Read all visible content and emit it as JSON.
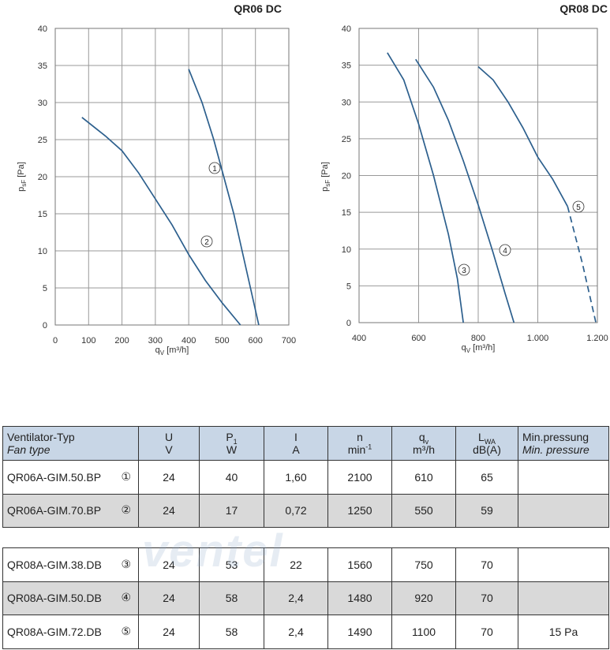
{
  "chart_data": [
    {
      "type": "line",
      "title": "QR06 DC",
      "xlabel": {
        "symbol": "q",
        "sub": "V",
        "unit": " [m³/h]"
      },
      "ylabel": {
        "symbol": "p",
        "sub": "sF",
        "unit": " [Pa]"
      },
      "xlim": [
        0,
        700
      ],
      "ylim": [
        0,
        40
      ],
      "xticks": [
        0,
        100,
        200,
        300,
        400,
        500,
        600,
        700
      ],
      "yticks": [
        0,
        5,
        10,
        15,
        20,
        25,
        30,
        35,
        40
      ],
      "grid": true,
      "series": [
        {
          "name": "1",
          "color": "#2c5f8d",
          "x": [
            400,
            440,
            475,
            505,
            535,
            560,
            585,
            610
          ],
          "values": [
            34.5,
            30,
            25,
            20,
            15,
            10,
            5,
            0
          ]
        },
        {
          "name": "2",
          "color": "#2c5f8d",
          "x": [
            80,
            150,
            200,
            250,
            300,
            350,
            400,
            450,
            500,
            555
          ],
          "values": [
            28,
            25.5,
            23.5,
            20.5,
            17,
            13.5,
            9.5,
            6,
            3,
            0
          ]
        }
      ]
    },
    {
      "type": "line",
      "title": "QR08 DC",
      "xlabel": {
        "symbol": "q",
        "sub": "V",
        "unit": " [m³/h]"
      },
      "ylabel": {
        "symbol": "p",
        "sub": "sF",
        "unit": " [Pa]"
      },
      "xlim": [
        400,
        1200
      ],
      "ylim": [
        0,
        40
      ],
      "xticks": [
        400,
        600,
        800,
        {
          "value": 1000,
          "label": "1.000"
        },
        {
          "value": 1200,
          "label": "1.200"
        }
      ],
      "yticks": [
        0,
        5,
        10,
        15,
        20,
        25,
        30,
        35,
        40
      ],
      "grid": true,
      "series": [
        {
          "name": "3",
          "color": "#2c5f8d",
          "x": [
            495,
            550,
            600,
            650,
            700,
            730,
            750
          ],
          "values": [
            36.7,
            33,
            27,
            20,
            12,
            6,
            0
          ]
        },
        {
          "name": "4",
          "color": "#2c5f8d",
          "x": [
            590,
            650,
            700,
            750,
            800,
            850,
            890,
            920
          ],
          "values": [
            35.8,
            32,
            27.5,
            22,
            16,
            9.5,
            4,
            0
          ]
        },
        {
          "name": "5",
          "color": "#2c5f8d",
          "dashed_beyond": 1100,
          "x": [
            800,
            850,
            900,
            950,
            1000,
            1050,
            1100,
            1150,
            1195
          ],
          "values": [
            34.8,
            33,
            30,
            26.5,
            22.5,
            19.5,
            15.8,
            8,
            0
          ]
        }
      ]
    }
  ],
  "table": {
    "header": [
      {
        "line1": [
          {
            "text": "Ventilator-Typ"
          }
        ],
        "line2": [
          {
            "text": "Fan type"
          }
        ]
      },
      {
        "line1": [
          {
            "text": "U"
          }
        ],
        "line2": [
          {
            "text": "V"
          }
        ]
      },
      {
        "line1": [
          {
            "text": "P"
          },
          {
            "text": "1",
            "sub": true
          }
        ],
        "line2": [
          {
            "text": "W"
          }
        ]
      },
      {
        "line1": [
          {
            "text": "I"
          }
        ],
        "line2": [
          {
            "text": "A"
          }
        ]
      },
      {
        "line1": [
          {
            "text": "n"
          }
        ],
        "line2": [
          {
            "text": "min"
          },
          {
            "text": "-1",
            "sup": true
          }
        ]
      },
      {
        "line1": [
          {
            "text": "q"
          },
          {
            "text": "v",
            "sub": true
          }
        ],
        "line2": [
          {
            "text": "m³/h"
          }
        ]
      },
      {
        "line1": [
          {
            "text": "L"
          },
          {
            "text": "WA",
            "sub": true
          }
        ],
        "line2": [
          {
            "text": "dB(A)"
          }
        ]
      },
      {
        "line1": [
          {
            "text": "Min.pressung"
          }
        ],
        "line2": [
          {
            "text": "Min. pressure"
          }
        ]
      }
    ],
    "groups": [
      {
        "rows": [
          {
            "type": "QR06A-GIM.50.BP",
            "ref": "①",
            "values": [
              "24",
              "40",
              "1,60",
              "2100",
              "610",
              "65"
            ]
          },
          {
            "type": "QR06A-GIM.70.BP",
            "ref": "②",
            "values": [
              "24",
              "17",
              "0,72",
              "1250",
              "550",
              "59"
            ]
          }
        ]
      },
      {
        "rows": [
          {
            "type": "QR08A-GIM.38.DB",
            "ref": "③",
            "values": [
              "24",
              "53",
              "22",
              "1560",
              "750",
              "70"
            ]
          },
          {
            "type": "QR08A-GIM.50.DB",
            "ref": "④",
            "values": [
              "24",
              "58",
              "2,4",
              "1480",
              "920",
              "70"
            ]
          },
          {
            "type": "QR08A-GIM.72.DB",
            "ref": "⑤",
            "values": [
              "24",
              "58",
              "2,4",
              "1490",
              "1100",
              "70"
            ],
            "min_pressure": "15 Pa"
          }
        ]
      }
    ]
  },
  "watermark": "ventel"
}
